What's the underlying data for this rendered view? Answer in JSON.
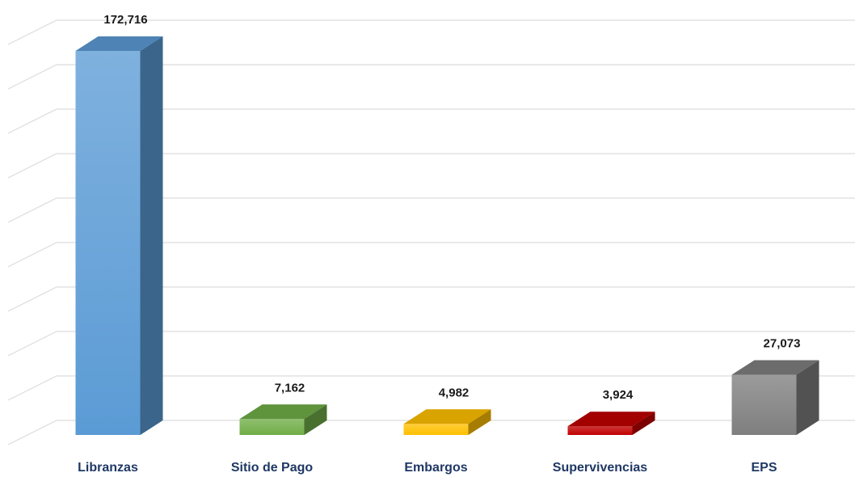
{
  "chart_data": {
    "type": "bar3d",
    "categories": [
      "Libranzas",
      "Sitio de Pago",
      "Embargos",
      "Supervivencias",
      "EPS"
    ],
    "values": [
      172716,
      7162,
      4982,
      3924,
      27073
    ],
    "value_labels": [
      "172,716",
      "7,162",
      "4,982",
      "3,924",
      "27,073"
    ],
    "colors": [
      "#5b9bd5",
      "#70ad47",
      "#ffc000",
      "#c00000",
      "#7f7f7f"
    ],
    "ylim": [
      0,
      180000
    ],
    "yticks": [
      0,
      20000,
      40000,
      60000,
      80000,
      100000,
      120000,
      140000,
      160000,
      180000
    ],
    "grid": true
  }
}
